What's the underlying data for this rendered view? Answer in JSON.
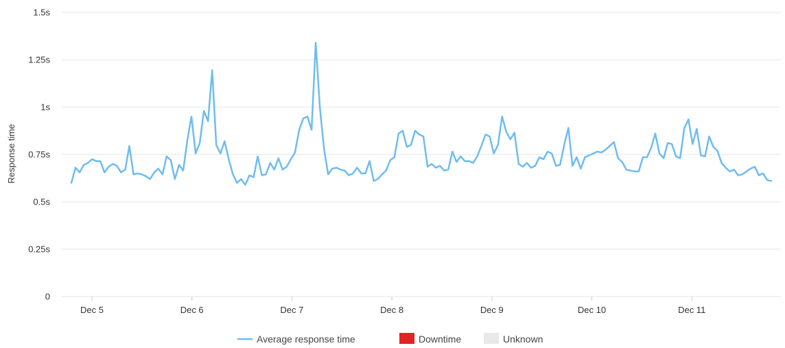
{
  "chart_data": {
    "type": "line",
    "ylabel": "Response time",
    "ylim": [
      0,
      1.5
    ],
    "y_ticks": [
      {
        "value": 0,
        "label": "0"
      },
      {
        "value": 0.25,
        "label": "0.25s"
      },
      {
        "value": 0.5,
        "label": "0.5s"
      },
      {
        "value": 0.75,
        "label": "0.75s"
      },
      {
        "value": 1,
        "label": "1s"
      },
      {
        "value": 1.25,
        "label": "1.25s"
      },
      {
        "value": 1.5,
        "label": "1.5s"
      }
    ],
    "x_ticks": [
      "Dec 5",
      "Dec 6",
      "Dec 7",
      "Dec 8",
      "Dec 9",
      "Dec 10",
      "Dec 11"
    ],
    "grid": true,
    "legend": {
      "placement": "bottom-center",
      "items": [
        {
          "label": "Average response time",
          "color": "#6ebcf0",
          "kind": "line"
        },
        {
          "label": "Downtime",
          "color": "#e02424",
          "kind": "box"
        },
        {
          "label": "Unknown",
          "color": "#e8e8e8",
          "kind": "box"
        }
      ]
    },
    "series": [
      {
        "name": "Average response time",
        "color": "#6ebcf0",
        "x_start": "Dec 4 19:30",
        "x_end": "Dec 11 20:30",
        "values": [
          0.6,
          0.68,
          0.655,
          0.695,
          0.705,
          0.725,
          0.715,
          0.715,
          0.655,
          0.685,
          0.7,
          0.69,
          0.655,
          0.67,
          0.795,
          0.645,
          0.65,
          0.645,
          0.635,
          0.62,
          0.655,
          0.675,
          0.645,
          0.74,
          0.72,
          0.62,
          0.695,
          0.665,
          0.825,
          0.95,
          0.755,
          0.81,
          0.98,
          0.925,
          1.195,
          0.8,
          0.755,
          0.82,
          0.725,
          0.645,
          0.6,
          0.62,
          0.59,
          0.64,
          0.63,
          0.74,
          0.64,
          0.645,
          0.705,
          0.67,
          0.73,
          0.67,
          0.685,
          0.725,
          0.76,
          0.88,
          0.94,
          0.95,
          0.88,
          1.34,
          1.0,
          0.78,
          0.645,
          0.675,
          0.68,
          0.67,
          0.665,
          0.64,
          0.65,
          0.68,
          0.65,
          0.65,
          0.715,
          0.61,
          0.62,
          0.645,
          0.665,
          0.72,
          0.735,
          0.86,
          0.875,
          0.79,
          0.8,
          0.875,
          0.855,
          0.845,
          0.685,
          0.7,
          0.68,
          0.69,
          0.665,
          0.67,
          0.765,
          0.71,
          0.74,
          0.715,
          0.715,
          0.705,
          0.74,
          0.795,
          0.855,
          0.845,
          0.755,
          0.8,
          0.95,
          0.87,
          0.83,
          0.865,
          0.7,
          0.685,
          0.705,
          0.68,
          0.69,
          0.735,
          0.725,
          0.765,
          0.755,
          0.69,
          0.695,
          0.8,
          0.89,
          0.69,
          0.735,
          0.675,
          0.735,
          0.745,
          0.755,
          0.765,
          0.76,
          0.775,
          0.795,
          0.815,
          0.73,
          0.71,
          0.67,
          0.665,
          0.66,
          0.66,
          0.735,
          0.735,
          0.785,
          0.86,
          0.755,
          0.73,
          0.81,
          0.805,
          0.74,
          0.73,
          0.89,
          0.935,
          0.805,
          0.885,
          0.745,
          0.74,
          0.845,
          0.79,
          0.77,
          0.705,
          0.68,
          0.66,
          0.67,
          0.64,
          0.645,
          0.66,
          0.675,
          0.685,
          0.64,
          0.65,
          0.615,
          0.61
        ]
      }
    ]
  }
}
